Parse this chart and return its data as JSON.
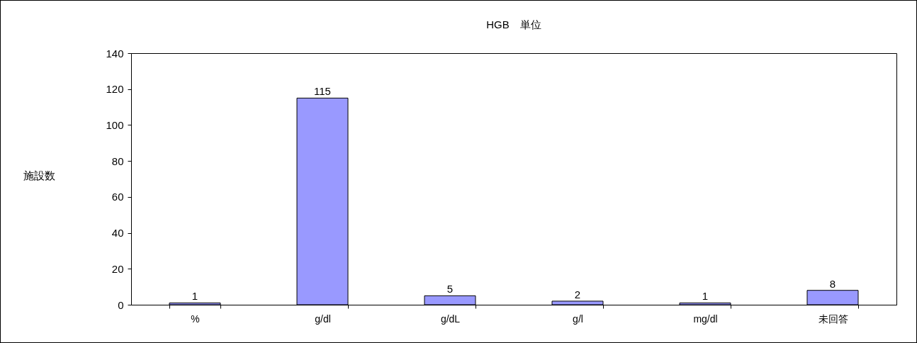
{
  "chart_data": {
    "type": "bar",
    "title": "HGB　単位",
    "ylabel": "施設数",
    "categories": [
      "%",
      "g/dl",
      "g/dL",
      "g/l",
      "mg/dl",
      "未回答"
    ],
    "values": [
      1,
      115,
      5,
      2,
      1,
      8
    ],
    "color": "#9999ff",
    "ylim": [
      0,
      140
    ],
    "yticks": [
      0,
      20,
      40,
      60,
      80,
      100,
      120,
      140
    ],
    "grid": false,
    "data_labels": true
  }
}
